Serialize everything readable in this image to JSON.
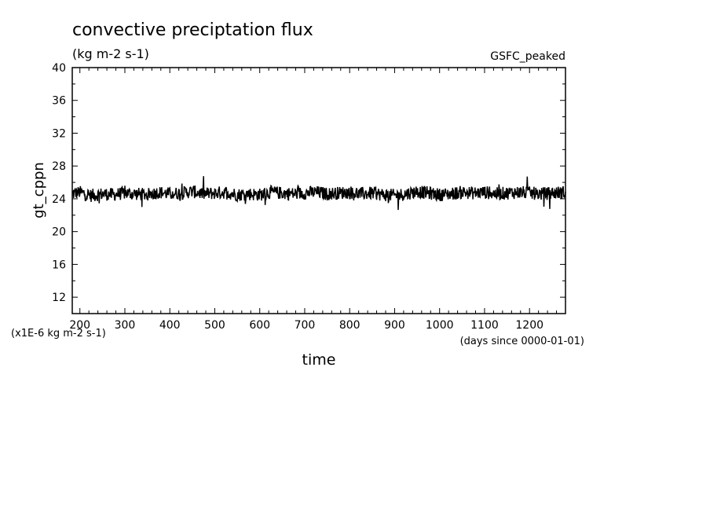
{
  "chart_data": {
    "type": "line",
    "title": "convective preciptation flux",
    "units": "(kg m-2 s-1)",
    "experiment": "GSFC_peaked",
    "xlabel": "time",
    "ylabel": "gt_cppn",
    "y_scale_note": "(x1E-6 kg m-2 s-1)",
    "x_units_note": "(days since 0000-01-01)",
    "xlim": [
      183,
      1280
    ],
    "ylim": [
      10,
      40
    ],
    "x_ticks": [
      200,
      300,
      400,
      500,
      600,
      700,
      800,
      900,
      1000,
      1100,
      1200
    ],
    "y_ticks": [
      12,
      16,
      20,
      24,
      28,
      32,
      36,
      40
    ],
    "grid": false,
    "legend": "none",
    "line_color": "#000000",
    "series": [
      {
        "x": [
          183,
          200,
          225,
          250,
          275,
          300,
          325,
          350,
          375,
          400,
          425,
          450,
          475,
          500,
          525,
          550,
          575,
          600,
          625,
          650,
          675,
          700,
          725,
          750,
          775,
          800,
          825,
          850,
          875,
          900,
          925,
          950,
          975,
          1000,
          1025,
          1050,
          1075,
          1100,
          1125,
          1150,
          1175,
          1200,
          1225,
          1250,
          1280
        ],
        "values": [
          24.6,
          24.8,
          24.4,
          24.6,
          24.5,
          24.7,
          24.6,
          24.5,
          24.8,
          24.6,
          24.7,
          24.9,
          24.6,
          24.7,
          24.8,
          24.5,
          24.6,
          24.5,
          24.8,
          24.7,
          24.6,
          24.7,
          24.8,
          24.6,
          24.7,
          24.8,
          24.6,
          24.7,
          24.5,
          24.4,
          24.6,
          24.9,
          24.7,
          24.5,
          24.6,
          24.8,
          24.7,
          24.8,
          24.6,
          24.7,
          24.8,
          24.7,
          24.6,
          24.7,
          24.8
        ]
      }
    ]
  }
}
